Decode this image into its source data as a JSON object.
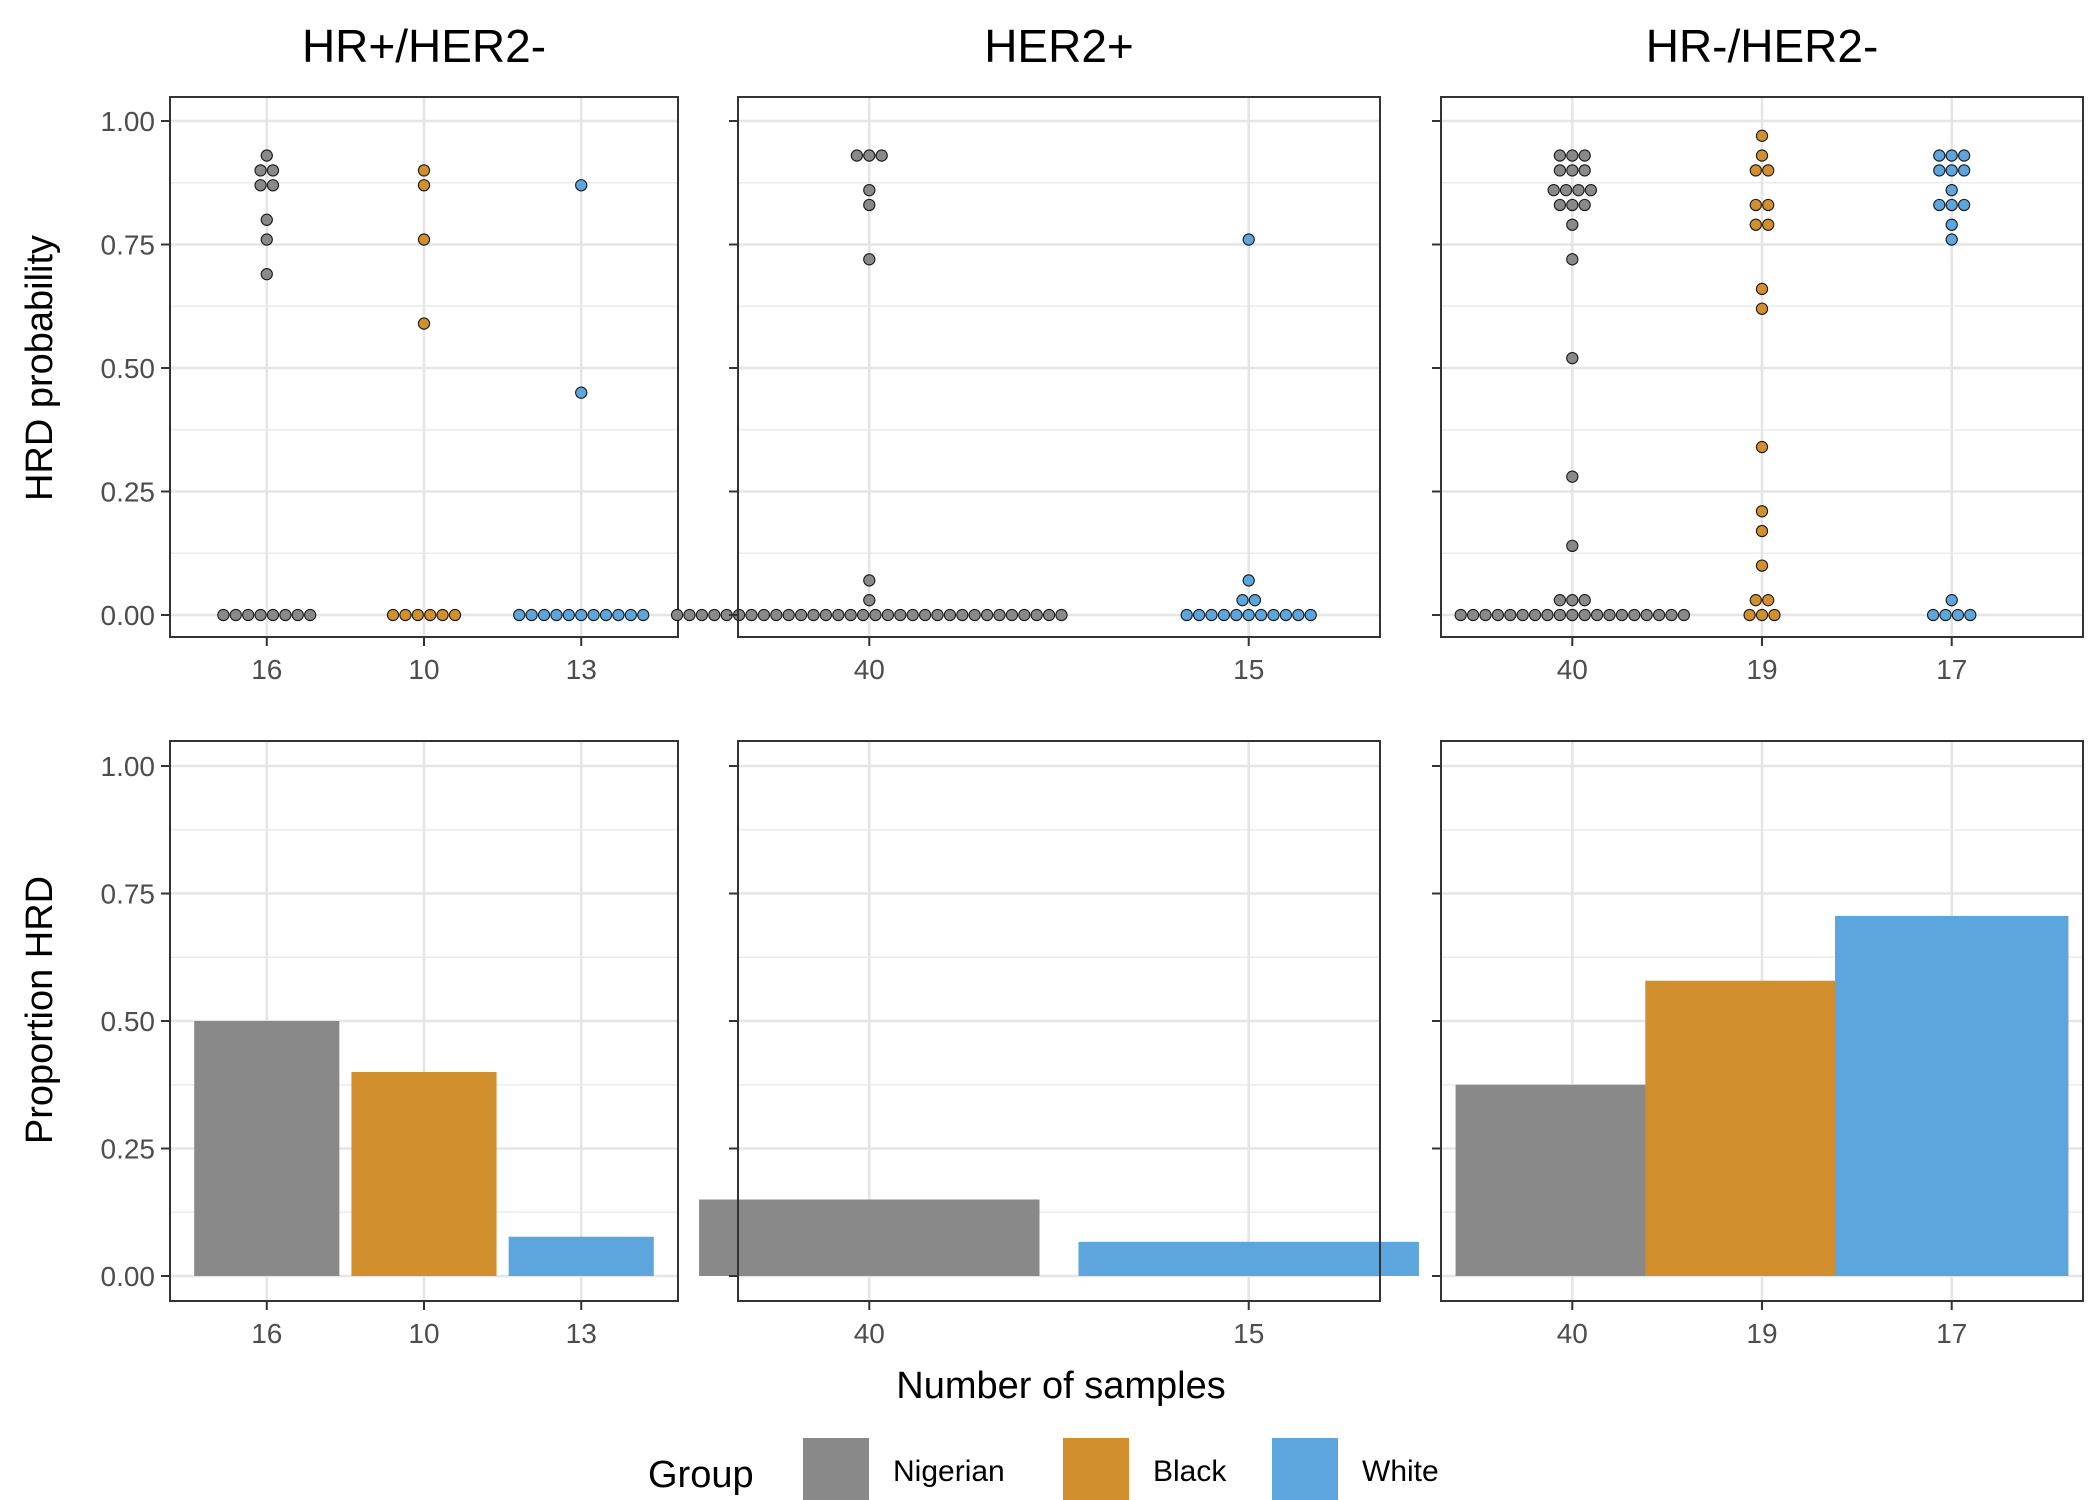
{
  "colors": {
    "Nigerian": "#898989",
    "Black": "#d18f2d",
    "White": "#5ca5dd"
  },
  "facets": [
    "HR+/HER2-",
    "HER2+",
    "HR-/HER2-"
  ],
  "y_axis_titles": {
    "top": "HRD probability",
    "bottom": "Proportion HRD"
  },
  "x_axis_title": "Number of samples",
  "y_ticks": [
    "0.00",
    "0.25",
    "0.50",
    "0.75",
    "1.00"
  ],
  "legend": {
    "title": "Group",
    "entries": [
      "Nigerian",
      "Black",
      "White"
    ]
  },
  "chart_data": [
    {
      "type": "scatter",
      "facet": "HR+/HER2-",
      "ylabel": "HRD probability",
      "ylim": [
        0,
        1
      ],
      "categories": [
        "16",
        "10",
        "13"
      ],
      "series": [
        {
          "name": "Nigerian",
          "category": "16",
          "values": [
            0.93,
            0.9,
            0.9,
            0.87,
            0.87,
            0.8,
            0.76,
            0.69,
            0,
            0,
            0,
            0,
            0,
            0,
            0,
            0
          ]
        },
        {
          "name": "Black",
          "category": "10",
          "values": [
            0.9,
            0.87,
            0.76,
            0.59,
            0,
            0,
            0,
            0,
            0,
            0
          ]
        },
        {
          "name": "White",
          "category": "13",
          "values": [
            0.87,
            0.45,
            0,
            0,
            0,
            0,
            0,
            0,
            0,
            0,
            0,
            0,
            0
          ]
        }
      ]
    },
    {
      "type": "scatter",
      "facet": "HER2+",
      "ylabel": "HRD probability",
      "ylim": [
        0,
        1
      ],
      "categories": [
        "40",
        "15"
      ],
      "series": [
        {
          "name": "Nigerian",
          "category": "40",
          "values": [
            0.93,
            0.93,
            0.93,
            0.86,
            0.83,
            0.72,
            0.07,
            0.03,
            0,
            0,
            0,
            0,
            0,
            0,
            0,
            0,
            0,
            0,
            0,
            0,
            0,
            0,
            0,
            0,
            0,
            0,
            0,
            0,
            0,
            0,
            0,
            0,
            0,
            0,
            0,
            0,
            0,
            0,
            0,
            0
          ]
        },
        {
          "name": "White",
          "category": "15",
          "values": [
            0.76,
            0.07,
            0.03,
            0.03,
            0,
            0,
            0,
            0,
            0,
            0,
            0,
            0,
            0,
            0,
            0
          ]
        }
      ]
    },
    {
      "type": "scatter",
      "facet": "HR-/HER2-",
      "ylabel": "HRD probability",
      "ylim": [
        0,
        1
      ],
      "categories": [
        "40",
        "19",
        "17"
      ],
      "series": [
        {
          "name": "Nigerian",
          "category": "40",
          "values": [
            0.93,
            0.93,
            0.93,
            0.9,
            0.9,
            0.9,
            0.86,
            0.86,
            0.86,
            0.86,
            0.83,
            0.83,
            0.83,
            0.79,
            0.72,
            0.52,
            0.28,
            0.14,
            0.03,
            0.03,
            0.03,
            0,
            0,
            0,
            0,
            0,
            0,
            0,
            0,
            0,
            0,
            0,
            0,
            0,
            0,
            0,
            0,
            0,
            0,
            0
          ]
        },
        {
          "name": "Black",
          "category": "19",
          "values": [
            0.97,
            0.93,
            0.9,
            0.9,
            0.83,
            0.83,
            0.79,
            0.79,
            0.66,
            0.62,
            0.34,
            0.21,
            0.17,
            0.1,
            0.03,
            0.03,
            0,
            0,
            0
          ]
        },
        {
          "name": "White",
          "category": "17",
          "values": [
            0.93,
            0.93,
            0.93,
            0.9,
            0.9,
            0.9,
            0.86,
            0.83,
            0.83,
            0.83,
            0.79,
            0.76,
            0.03,
            0,
            0,
            0,
            0
          ]
        }
      ]
    },
    {
      "type": "bar",
      "facet": "HR+/HER2-",
      "ylabel": "Proportion HRD",
      "ylim": [
        0,
        1
      ],
      "categories": [
        "16",
        "10",
        "13"
      ],
      "series": [
        {
          "name": "Proportion HRD",
          "values": [
            0.5,
            0.4,
            0.077
          ],
          "groups": [
            "Nigerian",
            "Black",
            "White"
          ]
        }
      ]
    },
    {
      "type": "bar",
      "facet": "HER2+",
      "ylabel": "Proportion HRD",
      "ylim": [
        0,
        1
      ],
      "categories": [
        "40",
        "15"
      ],
      "series": [
        {
          "name": "Proportion HRD",
          "values": [
            0.15,
            0.067
          ],
          "groups": [
            "Nigerian",
            "White"
          ]
        }
      ]
    },
    {
      "type": "bar",
      "facet": "HR-/HER2-",
      "ylabel": "Proportion HRD",
      "ylim": [
        0,
        1
      ],
      "categories": [
        "40",
        "19",
        "17"
      ],
      "series": [
        {
          "name": "Proportion HRD",
          "values": [
            0.375,
            0.579,
            0.706
          ],
          "groups": [
            "Nigerian",
            "Black",
            "White"
          ]
        }
      ]
    }
  ]
}
